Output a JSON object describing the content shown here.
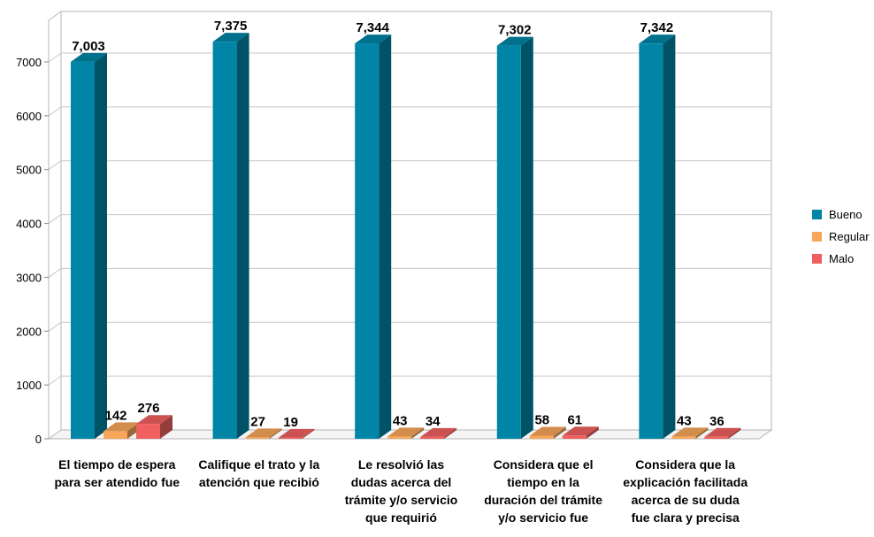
{
  "chart_data": {
    "type": "bar",
    "subtype": "3d-clustered-column",
    "categories": [
      [
        "El tiempo de espera",
        "para ser atendido fue"
      ],
      [
        "Califique el trato y la",
        "atención que recibió"
      ],
      [
        "Le resolvió las",
        "dudas acerca del",
        "trámite y/o servicio",
        "que requirió"
      ],
      [
        "Considera que el",
        "tiempo en la",
        "duración del trámite",
        "y/o servicio fue"
      ],
      [
        "Considera que la",
        "explicación facilitada",
        "acerca de su duda",
        "fue clara y precisa"
      ]
    ],
    "series": [
      {
        "name": "Bueno",
        "color": "#0085A6",
        "values": [
          7003,
          7375,
          7344,
          7302,
          7342
        ],
        "labels": [
          "7,003",
          "7,375",
          "7,344",
          "7,302",
          "7,342"
        ]
      },
      {
        "name": "Regular",
        "color": "#F7A65A",
        "values": [
          142,
          27,
          43,
          58,
          43
        ],
        "labels": [
          "142",
          "27",
          "43",
          "58",
          "43"
        ]
      },
      {
        "name": "Malo",
        "color": "#F06060",
        "values": [
          276,
          19,
          34,
          61,
          36
        ],
        "labels": [
          "276",
          "19",
          "34",
          "61",
          "36"
        ]
      }
    ],
    "yticks": [
      "0",
      "1000",
      "2000",
      "3000",
      "4000",
      "5000",
      "6000",
      "7000"
    ],
    "ylim": [
      0,
      8000
    ],
    "grid": true,
    "legend": "right",
    "title": "",
    "xlabel": "",
    "ylabel": ""
  }
}
